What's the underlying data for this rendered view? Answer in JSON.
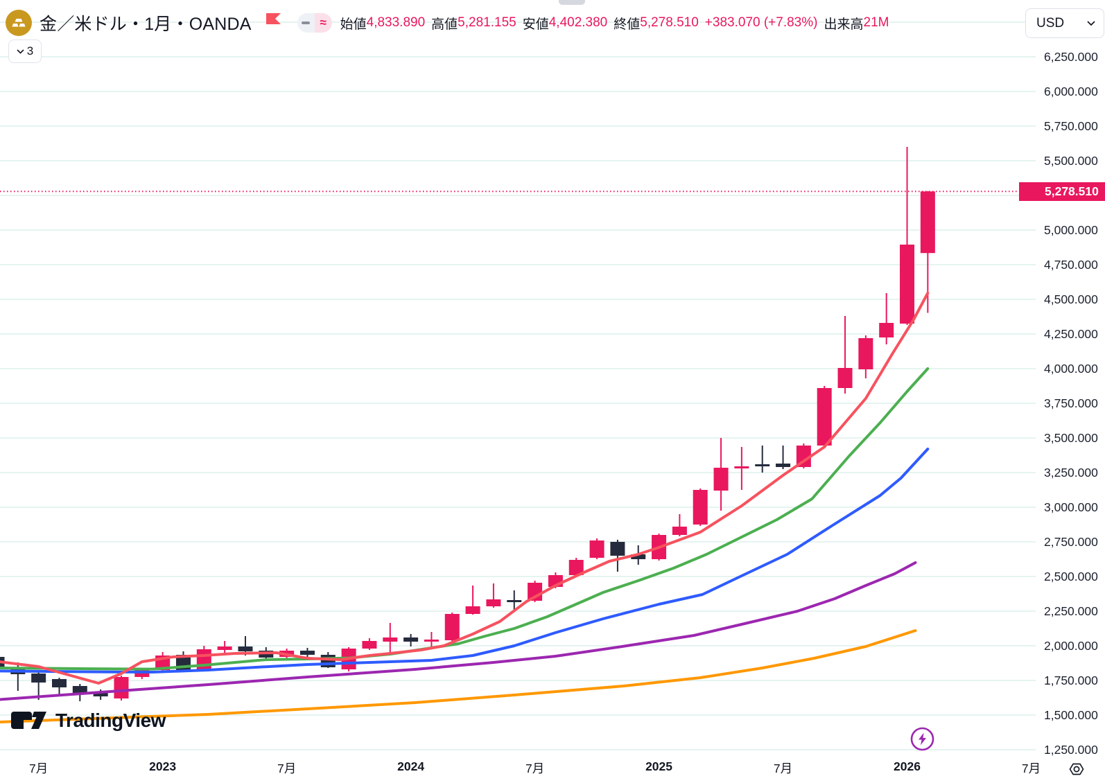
{
  "header": {
    "title": "金／米ドル・1月・OANDA",
    "symbol_icon": "gold-ingots-icon",
    "ohlc": {
      "open_label": "始値",
      "open": "4,833.890",
      "high_label": "高値",
      "high": "5,281.155",
      "low_label": "安値",
      "low": "4,402.380",
      "close_label": "終値",
      "close": "5,278.510",
      "change": "+383.070 (+7.83%)",
      "volume_label": "出来高",
      "volume": "21M"
    },
    "currency_button": "USD",
    "collapse_count": "3",
    "pill_approx": "≈"
  },
  "watermark": "TradingView",
  "colors": {
    "up": "#e9175e",
    "down": "#252b3d",
    "grid": "#cbe9e3",
    "accent": "#e9175e",
    "text": "#131722",
    "ma_fast_red": "#f7525f",
    "ma_green": "#4caf50",
    "ma_blue": "#2e5bff",
    "ma_purple": "#9c27b0",
    "ma_orange": "#ff9800"
  },
  "price_scale": {
    "current": "5,278.510",
    "ticks": [
      "6,250.000",
      "6,000.000",
      "5,750.000",
      "5,500.000",
      "5,000.000",
      "4,750.000",
      "4,500.000",
      "4,250.000",
      "4,000.000",
      "3,750.000",
      "3,500.000",
      "3,250.000",
      "3,000.000",
      "2,750.000",
      "2,500.000",
      "2,250.000",
      "2,000.000",
      "1,750.000",
      "1,500.000",
      "1,250.000"
    ]
  },
  "chart_data": {
    "type": "candlestick",
    "title": "Gold / U.S. Dollar, 1 month, OANDA",
    "ylim": [
      1250,
      6500
    ],
    "axis": {
      "min": 1250,
      "max": 6500,
      "step": 250,
      "grid": true
    },
    "current_price": 5278.51,
    "time_ticks": [
      {
        "label": "7月",
        "index": 2
      },
      {
        "label": "2023",
        "index": 8
      },
      {
        "label": "7月",
        "index": 14
      },
      {
        "label": "2024",
        "index": 20
      },
      {
        "label": "7月",
        "index": 26
      },
      {
        "label": "2025",
        "index": 32
      },
      {
        "label": "7月",
        "index": 38
      },
      {
        "label": "2026",
        "index": 44
      },
      {
        "label": "7月",
        "index": 50
      }
    ],
    "candles": [
      {
        "month": "2022-05",
        "ohlc": [
          1920,
          1930,
          1810,
          1835
        ]
      },
      {
        "month": "2022-06",
        "ohlc": [
          1845,
          1880,
          1675,
          1795
        ]
      },
      {
        "month": "2022-07",
        "ohlc": [
          1800,
          1825,
          1610,
          1735
        ]
      },
      {
        "month": "2022-08",
        "ohlc": [
          1760,
          1770,
          1650,
          1700
        ]
      },
      {
        "month": "2022-09",
        "ohlc": [
          1710,
          1725,
          1600,
          1660
        ]
      },
      {
        "month": "2022-10",
        "ohlc": [
          1670,
          1685,
          1610,
          1635
        ]
      },
      {
        "month": "2022-11",
        "ohlc": [
          1620,
          1785,
          1605,
          1775
        ]
      },
      {
        "month": "2022-12",
        "ohlc": [
          1775,
          1840,
          1760,
          1835
        ]
      },
      {
        "month": "2023-01",
        "ohlc": [
          1825,
          1955,
          1820,
          1930
        ]
      },
      {
        "month": "2023-02",
        "ohlc": [
          1935,
          1960,
          1810,
          1820
        ]
      },
      {
        "month": "2023-03",
        "ohlc": [
          1825,
          2000,
          1815,
          1975
        ]
      },
      {
        "month": "2023-04",
        "ohlc": [
          1970,
          2035,
          1935,
          1995
        ]
      },
      {
        "month": "2023-05",
        "ohlc": [
          1995,
          2070,
          1930,
          1960
        ]
      },
      {
        "month": "2023-06",
        "ohlc": [
          1965,
          1990,
          1900,
          1915
        ]
      },
      {
        "month": "2023-07",
        "ohlc": [
          1920,
          1980,
          1910,
          1965
        ]
      },
      {
        "month": "2023-08",
        "ohlc": [
          1965,
          1985,
          1920,
          1935
        ]
      },
      {
        "month": "2023-09",
        "ohlc": [
          1935,
          1955,
          1840,
          1845
        ]
      },
      {
        "month": "2023-10",
        "ohlc": [
          1830,
          1990,
          1815,
          1980
        ]
      },
      {
        "month": "2023-11",
        "ohlc": [
          1980,
          2055,
          1970,
          2035
        ]
      },
      {
        "month": "2023-12",
        "ohlc": [
          2030,
          2165,
          1930,
          2060
        ]
      },
      {
        "month": "2024-01",
        "ohlc": [
          2060,
          2085,
          1995,
          2030
        ]
      },
      {
        "month": "2024-02",
        "ohlc": [
          2030,
          2100,
          1990,
          2045
        ]
      },
      {
        "month": "2024-03",
        "ohlc": [
          2040,
          2240,
          2030,
          2230
        ]
      },
      {
        "month": "2024-04",
        "ohlc": [
          2230,
          2435,
          2225,
          2285
        ]
      },
      {
        "month": "2024-05",
        "ohlc": [
          2285,
          2450,
          2275,
          2335
        ]
      },
      {
        "month": "2024-06",
        "ohlc": [
          2330,
          2400,
          2250,
          2320
        ]
      },
      {
        "month": "2024-07",
        "ohlc": [
          2325,
          2470,
          2315,
          2455
        ]
      },
      {
        "month": "2024-08",
        "ohlc": [
          2425,
          2530,
          2415,
          2510
        ]
      },
      {
        "month": "2024-09",
        "ohlc": [
          2510,
          2635,
          2500,
          2620
        ]
      },
      {
        "month": "2024-10",
        "ohlc": [
          2635,
          2775,
          2625,
          2760
        ]
      },
      {
        "month": "2024-11",
        "ohlc": [
          2750,
          2765,
          2535,
          2650
        ]
      },
      {
        "month": "2024-12",
        "ohlc": [
          2660,
          2725,
          2585,
          2625
        ]
      },
      {
        "month": "2025-01",
        "ohlc": [
          2625,
          2810,
          2615,
          2800
        ]
      },
      {
        "month": "2025-02",
        "ohlc": [
          2800,
          2950,
          2790,
          2860
        ]
      },
      {
        "month": "2025-03",
        "ohlc": [
          2875,
          3135,
          2865,
          3125
        ]
      },
      {
        "month": "2025-04",
        "ohlc": [
          3120,
          3500,
          2975,
          3285
        ]
      },
      {
        "month": "2025-05",
        "ohlc": [
          3280,
          3435,
          3125,
          3295
        ]
      },
      {
        "month": "2025-06",
        "ohlc": [
          3310,
          3445,
          3250,
          3300
        ]
      },
      {
        "month": "2025-07",
        "ohlc": [
          3315,
          3445,
          3275,
          3290
        ]
      },
      {
        "month": "2025-08",
        "ohlc": [
          3290,
          3460,
          3280,
          3445
        ]
      },
      {
        "month": "2025-09",
        "ohlc": [
          3445,
          3875,
          3435,
          3860
        ]
      },
      {
        "month": "2025-10",
        "ohlc": [
          3860,
          4380,
          3820,
          4005
        ]
      },
      {
        "month": "2025-11",
        "ohlc": [
          3995,
          4240,
          3930,
          4220
        ]
      },
      {
        "month": "2025-12",
        "ohlc": [
          4225,
          4545,
          4175,
          4330
        ]
      },
      {
        "month": "2026-01",
        "ohlc": [
          4325,
          5600,
          4315,
          4895
        ]
      },
      {
        "month": "2026-02",
        "ohlc": [
          4833.89,
          5281.155,
          4402.38,
          5278.51
        ]
      }
    ],
    "series": [
      {
        "name": "ma-orange",
        "color": "#ff9800",
        "points": [
          [
            0.1,
            1450
          ],
          [
            5,
            1477
          ],
          [
            10.2,
            1505
          ],
          [
            15,
            1545
          ],
          [
            20.2,
            1590
          ],
          [
            25,
            1645
          ],
          [
            30.3,
            1710
          ],
          [
            34,
            1770
          ],
          [
            37,
            1840
          ],
          [
            39.5,
            1910
          ],
          [
            42,
            1995
          ],
          [
            44.4,
            2110
          ]
        ]
      },
      {
        "name": "ma-purple",
        "color": "#9c27b0",
        "points": [
          [
            0.1,
            1612
          ],
          [
            5,
            1665
          ],
          [
            10.2,
            1720
          ],
          [
            15,
            1775
          ],
          [
            20.2,
            1830
          ],
          [
            24,
            1880
          ],
          [
            27,
            1925
          ],
          [
            30,
            1990
          ],
          [
            33.7,
            2075
          ],
          [
            36,
            2155
          ],
          [
            38.7,
            2250
          ],
          [
            40.5,
            2340
          ],
          [
            42,
            2435
          ],
          [
            43.4,
            2520
          ],
          [
            44.4,
            2600
          ]
        ]
      },
      {
        "name": "ma-blue",
        "color": "#2e5bff",
        "points": [
          [
            0.1,
            1818
          ],
          [
            5,
            1812
          ],
          [
            7.5,
            1810
          ],
          [
            10.2,
            1825
          ],
          [
            12.5,
            1845
          ],
          [
            15,
            1865
          ],
          [
            19,
            1885
          ],
          [
            21,
            1895
          ],
          [
            23,
            1930
          ],
          [
            25,
            2000
          ],
          [
            27,
            2095
          ],
          [
            29.3,
            2195
          ],
          [
            32,
            2300
          ],
          [
            34.1,
            2370
          ],
          [
            36,
            2505
          ],
          [
            38.2,
            2660
          ],
          [
            40.3,
            2860
          ],
          [
            42.7,
            3085
          ],
          [
            43.7,
            3210
          ],
          [
            45,
            3420
          ]
        ]
      },
      {
        "name": "ma-green",
        "color": "#4caf50",
        "points": [
          [
            0.1,
            1840
          ],
          [
            4,
            1835
          ],
          [
            7.5,
            1832
          ],
          [
            10,
            1860
          ],
          [
            13,
            1900
          ],
          [
            15,
            1905
          ],
          [
            17,
            1912
          ],
          [
            19,
            1940
          ],
          [
            21,
            1985
          ],
          [
            22.3,
            2015
          ],
          [
            23.6,
            2070
          ],
          [
            25,
            2125
          ],
          [
            26.6,
            2210
          ],
          [
            28.3,
            2320
          ],
          [
            29.3,
            2385
          ],
          [
            31,
            2470
          ],
          [
            32.7,
            2560
          ],
          [
            34.3,
            2660
          ],
          [
            36,
            2785
          ],
          [
            37.7,
            2910
          ],
          [
            39.4,
            3060
          ],
          [
            41.2,
            3370
          ],
          [
            42.7,
            3610
          ],
          [
            44,
            3835
          ],
          [
            45,
            4000
          ]
        ]
      },
      {
        "name": "ma-red",
        "color": "#f7525f",
        "points": [
          [
            0.1,
            1885
          ],
          [
            2,
            1850
          ],
          [
            3.2,
            1800
          ],
          [
            4.9,
            1730
          ],
          [
            6,
            1800
          ],
          [
            7,
            1885
          ],
          [
            8.5,
            1920
          ],
          [
            10,
            1930
          ],
          [
            11.5,
            1945
          ],
          [
            13.5,
            1950
          ],
          [
            15,
            1910
          ],
          [
            16.6,
            1900
          ],
          [
            18,
            1930
          ],
          [
            19,
            1945
          ],
          [
            20.5,
            1970
          ],
          [
            21.6,
            2000
          ],
          [
            23,
            2085
          ],
          [
            24.3,
            2175
          ],
          [
            25.6,
            2320
          ],
          [
            27,
            2435
          ],
          [
            28.3,
            2525
          ],
          [
            29.6,
            2610
          ],
          [
            31,
            2660
          ],
          [
            32,
            2710
          ],
          [
            34,
            2820
          ],
          [
            36,
            3010
          ],
          [
            38,
            3230
          ],
          [
            40,
            3435
          ],
          [
            42,
            3785
          ],
          [
            43.3,
            4110
          ],
          [
            44.3,
            4350
          ],
          [
            45,
            4545
          ]
        ]
      }
    ]
  }
}
